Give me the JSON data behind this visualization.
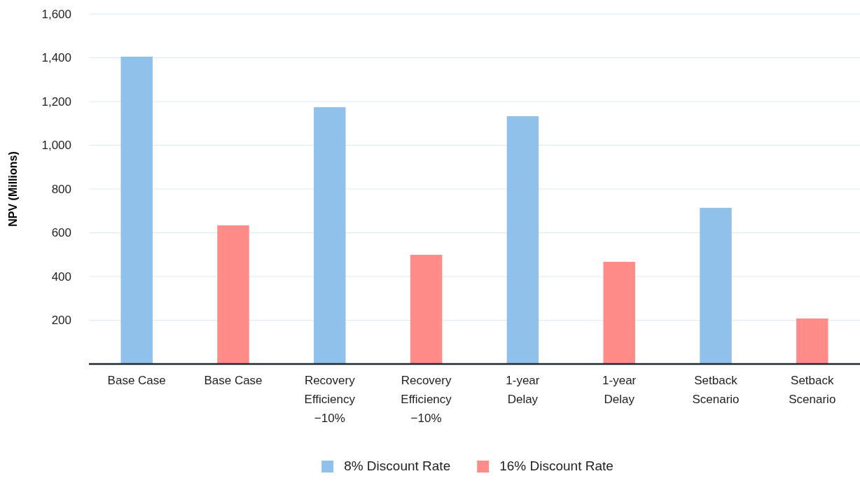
{
  "chart_data": {
    "type": "bar",
    "ylabel": "NPV (Millions)",
    "categories": [
      "Base Case",
      "Base Case",
      "Recovery Efficiency −10%",
      "Recovery Efficiency −10%",
      "1-year Delay",
      "1-year Delay",
      "Setback Scenario",
      "Setback Scenario"
    ],
    "series": [
      {
        "name": "8% Discount Rate",
        "color": "#8fc1ea",
        "values": [
          1405,
          null,
          1174,
          null,
          1133,
          null,
          714,
          null
        ]
      },
      {
        "name": "16% Discount Rate",
        "color": "#ff8c88",
        "values": [
          null,
          634,
          null,
          499,
          null,
          467,
          null,
          208
        ]
      }
    ],
    "ylim": [
      0,
      1600
    ],
    "yticks": [
      200,
      400,
      600,
      800,
      {
        "value": 1000,
        "label": "1,000"
      },
      {
        "value": 1200,
        "label": "1,200"
      },
      {
        "value": 1400,
        "label": "1,400"
      },
      {
        "value": 1600,
        "label": "1,600"
      }
    ],
    "grid": "y",
    "legend": "bottom"
  }
}
